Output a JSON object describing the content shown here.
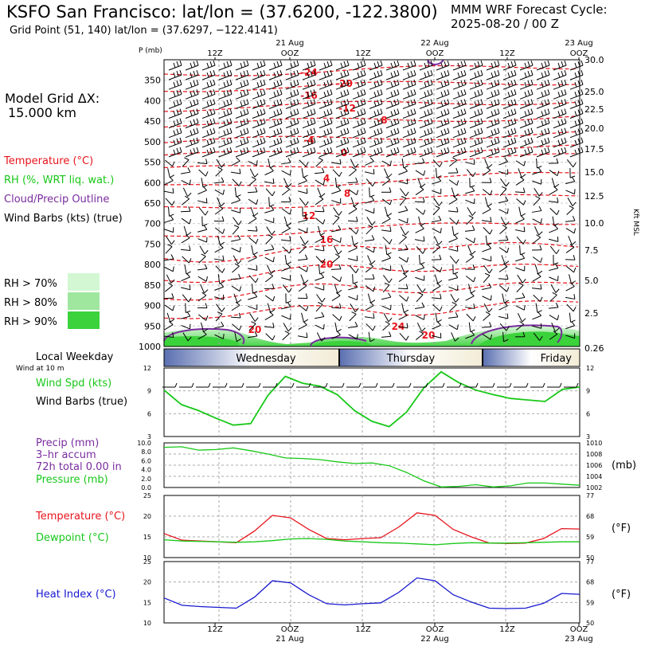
{
  "header": {
    "title": "KSFO San Francisco:  lat/lon = (37.6200, -122.3800)",
    "grid_point": "Grid Point (51, 140) lat/lon = (37.6297, −122.4141)",
    "cycle_label": "MMM WRF Forecast Cycle:",
    "cycle_value": "2025-08-20 / 00  Z"
  },
  "sidebar": {
    "model_grid_label": "Model Grid ΔX:",
    "model_grid_value": "15.000 km",
    "legend": [
      {
        "text": "Temperature (°C)",
        "color": "#e8141c"
      },
      {
        "text": "RH (%, WRT liq. wat.)",
        "color": "#18c818"
      },
      {
        "text": "Cloud/Precip Outline",
        "color": "#7a2c9e"
      },
      {
        "text": "Wind Barbs (kts) (true)",
        "color": "#000000"
      }
    ],
    "rh_legend": [
      {
        "text": "RH  > 70%",
        "color": "#d2f7d2"
      },
      {
        "text": "RH  > 80%",
        "color": "#9fe79f"
      },
      {
        "text": "RH  > 90%",
        "color": "#3cd23c"
      }
    ]
  },
  "time_axis": {
    "tick_labels": [
      "12Z",
      "OOZ",
      "12Z",
      "OOZ",
      "12Z",
      "OOZ"
    ],
    "date_labels": [
      "21 Aug",
      "22 Aug",
      "23 Aug"
    ]
  },
  "weekday_bar": {
    "label": "Local Weekday",
    "sublabel": "Wind at 10 m",
    "days": [
      "Wednesday",
      "Thursday",
      "Friday"
    ]
  },
  "chart_data": [
    {
      "type": "heatmap",
      "title": "Vertical cross-section",
      "ylabel": "P (mb)",
      "right_axis_label": "Kft MSL",
      "pressure_ticks": [
        350,
        400,
        450,
        500,
        550,
        600,
        650,
        700,
        750,
        800,
        850,
        900,
        950,
        1000
      ],
      "kft_ticks": [
        "30.0",
        "25.0",
        "22.5",
        "20.0",
        "17.5",
        "15.0",
        "12.5",
        "10.0",
        "7.5",
        "5.0",
        "2.5",
        "0.26"
      ],
      "temperature_contour_labels": [
        "-24",
        "-20",
        "-16",
        "-12",
        "-8",
        "-4",
        "0",
        "4",
        "8",
        "12",
        "16",
        "20",
        "20",
        "24",
        "20"
      ],
      "colors": {
        "temperature": "#e8141c",
        "cloud": "#7a2c9e",
        "rh70": "#d2f7d2",
        "rh80": "#9fe79f",
        "rh90": "#3cd23c"
      }
    },
    {
      "type": "line",
      "label_lines": [
        "Wind Spd (kts)",
        "Wind Barbs (true)"
      ],
      "label_colors": [
        "#18c818",
        "#000000"
      ],
      "ylim": [
        3,
        12
      ],
      "y_ticks": [
        3,
        6,
        9,
        12
      ],
      "series": [
        {
          "name": "Wind Spd (kts)",
          "color": "#18c818",
          "values": [
            9.1,
            7.2,
            6.4,
            5.4,
            4.5,
            4.7,
            8.4,
            10.9,
            10.0,
            9.6,
            8.5,
            6.4,
            5.0,
            4.3,
            6.2,
            9.4,
            11.5,
            10.1,
            9.1,
            8.5,
            8.0,
            7.8,
            7.6,
            9.2,
            9.5
          ]
        }
      ]
    },
    {
      "type": "line",
      "label_lines": [
        "Precip (mm)",
        "3–hr accum",
        "72h total 0.00 in",
        "Pressure (mb)"
      ],
      "label_colors": [
        "#7a2c9e",
        "#7a2c9e",
        "#7a2c9e",
        "#18c818"
      ],
      "left_ticks": [
        "0.0",
        "2.0",
        "4.0",
        "6.0",
        "8.0",
        "10.0"
      ],
      "right_ticks": [
        1002,
        1004,
        1006,
        1008,
        1010
      ],
      "ylim": [
        1002,
        1010
      ],
      "unit_label": "(mb)",
      "series": [
        {
          "name": "Pressure (mb)",
          "color": "#18c818",
          "values": [
            1009.2,
            1009.3,
            1008.7,
            1008.8,
            1009.1,
            1008.6,
            1008.0,
            1007.3,
            1007.2,
            1007.0,
            1006.6,
            1006.3,
            1006.4,
            1005.9,
            1004.7,
            1003.2,
            1002.1,
            1002.2,
            1002.5,
            1002.1,
            1002.3,
            1002.8,
            1002.8,
            1002.6,
            1002.4
          ]
        }
      ]
    },
    {
      "type": "line",
      "label_lines": [
        "Temperature (°C)",
        "Dewpoint (°C)"
      ],
      "label_colors": [
        "#e8141c",
        "#18c818"
      ],
      "ylim": [
        10,
        25
      ],
      "y_ticks": [
        10,
        15,
        20,
        25
      ],
      "right_ticks": [
        50,
        59,
        68,
        77
      ],
      "unit_label": "(°F)",
      "series": [
        {
          "name": "Temperature (°C)",
          "color": "#e8141c",
          "values": [
            15.8,
            14.2,
            14.0,
            13.8,
            13.6,
            16.4,
            20.2,
            19.6,
            16.8,
            14.6,
            14.3,
            14.6,
            14.8,
            17.4,
            20.8,
            20.2,
            16.8,
            15.0,
            13.5,
            13.4,
            13.5,
            14.6,
            17.0,
            16.9
          ]
        },
        {
          "name": "Dewpoint (°C)",
          "color": "#18c818",
          "values": [
            14.3,
            14.0,
            13.9,
            13.8,
            13.7,
            13.8,
            14.1,
            14.5,
            14.6,
            14.4,
            14.0,
            13.8,
            13.6,
            13.5,
            13.3,
            13.1,
            13.4,
            13.6,
            13.5,
            13.5,
            13.6,
            13.7,
            13.8,
            13.8
          ]
        }
      ]
    },
    {
      "type": "line",
      "label_lines": [
        "Heat Index (°C)"
      ],
      "label_colors": [
        "#1818d0"
      ],
      "ylim": [
        10,
        25
      ],
      "y_ticks": [
        10,
        15,
        20,
        25
      ],
      "right_ticks": [
        50,
        59,
        68,
        77
      ],
      "unit_label": "(°F)",
      "series": [
        {
          "name": "Heat Index (°C)",
          "color": "#1818d0",
          "values": [
            16.1,
            14.3,
            14.0,
            13.8,
            13.6,
            16.3,
            20.3,
            19.8,
            16.9,
            14.7,
            14.4,
            14.7,
            14.9,
            17.5,
            21.0,
            20.3,
            16.9,
            15.1,
            13.6,
            13.5,
            13.6,
            14.8,
            17.2,
            17.0
          ]
        }
      ]
    }
  ]
}
